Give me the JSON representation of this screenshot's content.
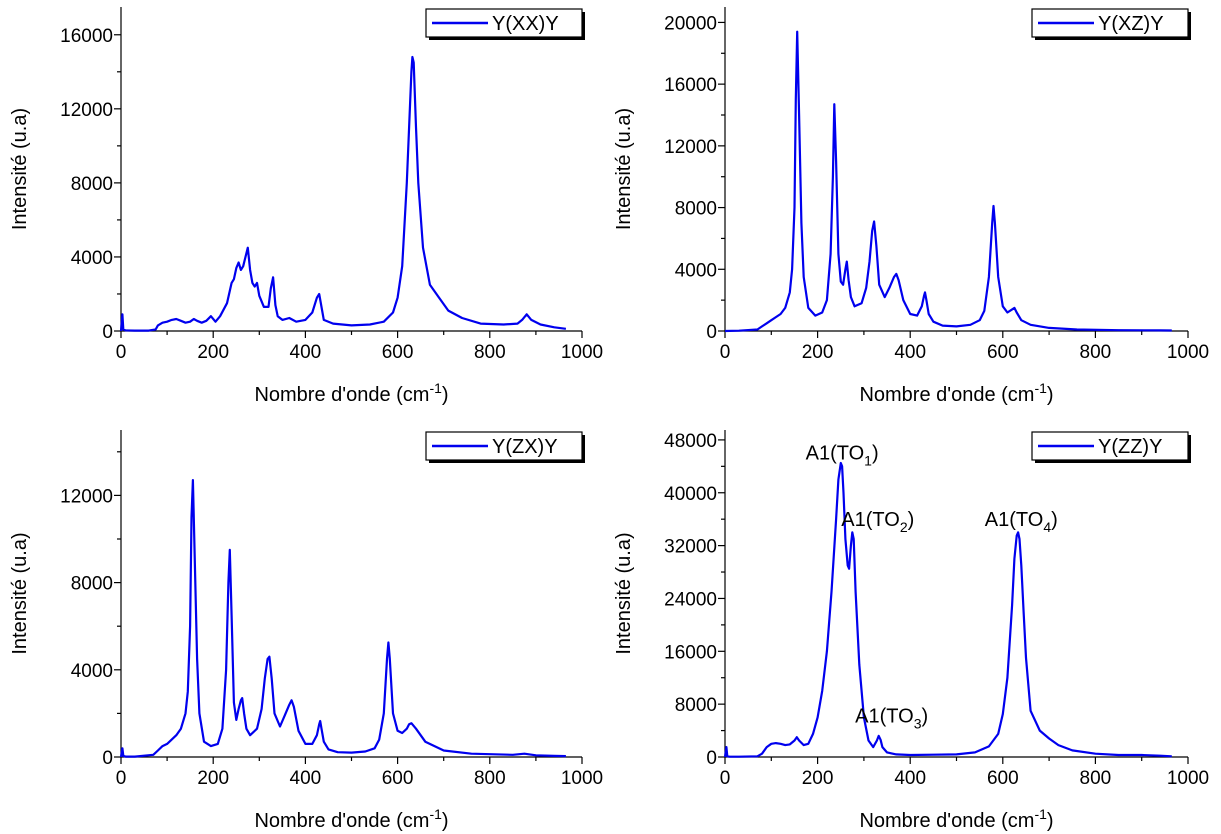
{
  "colors": {
    "series": "#0000ee",
    "axis": "#000000"
  },
  "chart_data": [
    {
      "type": "line",
      "xlabel": "Nombre d'onde (cm",
      "xlabel_sup": "-1",
      "xlabel_close": ")",
      "ylabel": "Intensité (u.a)",
      "xlim": [
        0,
        1000
      ],
      "ylim": [
        0,
        17500
      ],
      "xticks": [
        0,
        200,
        400,
        600,
        800,
        1000
      ],
      "xtick_labels": [
        "0",
        "200",
        "400",
        "600",
        "800",
        "1000"
      ],
      "yticks": [
        0,
        4000,
        8000,
        12000,
        16000
      ],
      "ytick_labels": [
        "0",
        "4000",
        "8000",
        "12000",
        "16000"
      ],
      "grid": false,
      "legend_position": "top-right",
      "series": [
        {
          "name": "Y(XX)Y",
          "x": [
            0,
            3,
            5,
            10,
            30,
            60,
            75,
            80,
            90,
            100,
            110,
            120,
            130,
            140,
            150,
            158,
            165,
            175,
            185,
            195,
            205,
            215,
            230,
            240,
            245,
            250,
            255,
            260,
            265,
            270,
            275,
            280,
            285,
            290,
            295,
            300,
            310,
            320,
            325,
            330,
            335,
            340,
            350,
            365,
            380,
            400,
            415,
            425,
            430,
            440,
            460,
            500,
            540,
            570,
            590,
            600,
            610,
            620,
            625,
            630,
            632,
            635,
            640,
            645,
            655,
            670,
            690,
            710,
            740,
            780,
            830,
            860,
            870,
            880,
            890,
            910,
            940,
            965
          ],
          "y": [
            0,
            900,
            80,
            30,
            20,
            20,
            80,
            300,
            450,
            500,
            600,
            650,
            550,
            450,
            500,
            650,
            550,
            450,
            550,
            800,
            500,
            800,
            1500,
            2600,
            2800,
            3400,
            3700,
            3300,
            3500,
            4000,
            4500,
            3300,
            2600,
            2400,
            2600,
            1900,
            1300,
            1300,
            2300,
            2900,
            1400,
            800,
            600,
            700,
            500,
            600,
            1000,
            1800,
            2000,
            600,
            400,
            300,
            350,
            500,
            1000,
            1800,
            3500,
            8000,
            11000,
            14000,
            14800,
            14500,
            11000,
            8000,
            4500,
            2500,
            1800,
            1100,
            700,
            400,
            350,
            400,
            600,
            900,
            600,
            350,
            200,
            120
          ]
        }
      ]
    },
    {
      "type": "line",
      "xlabel": "Nombre d'onde (cm",
      "xlabel_sup": "-1",
      "xlabel_close": ")",
      "ylabel": "Intensité (u.a)",
      "xlim": [
        0,
        1000
      ],
      "ylim": [
        0,
        21000
      ],
      "xticks": [
        0,
        200,
        400,
        600,
        800,
        1000
      ],
      "xtick_labels": [
        "0",
        "200",
        "400",
        "600",
        "800",
        "1000"
      ],
      "yticks": [
        0,
        4000,
        8000,
        12000,
        16000,
        20000
      ],
      "ytick_labels": [
        "0",
        "4000",
        "8000",
        "12000",
        "16000",
        "20000"
      ],
      "grid": false,
      "legend_position": "top-right",
      "series": [
        {
          "name": "Y(XZ)Y",
          "x": [
            0,
            30,
            70,
            80,
            90,
            100,
            110,
            120,
            130,
            140,
            145,
            150,
            153,
            156,
            160,
            165,
            170,
            180,
            195,
            210,
            220,
            228,
            233,
            236,
            240,
            245,
            250,
            255,
            260,
            263,
            267,
            272,
            280,
            295,
            305,
            312,
            318,
            322,
            327,
            333,
            345,
            355,
            365,
            370,
            375,
            385,
            400,
            415,
            425,
            430,
            432,
            435,
            440,
            450,
            470,
            500,
            530,
            550,
            560,
            570,
            577,
            580,
            583,
            590,
            600,
            610,
            620,
            625,
            630,
            640,
            660,
            700,
            760,
            850,
            940,
            965
          ],
          "y": [
            0,
            20,
            100,
            300,
            500,
            700,
            900,
            1100,
            1500,
            2500,
            4000,
            8000,
            15000,
            19400,
            14000,
            7000,
            3500,
            1500,
            1000,
            1200,
            2000,
            5000,
            10000,
            14700,
            11000,
            5000,
            3200,
            3000,
            4000,
            4500,
            3300,
            2200,
            1600,
            1800,
            2800,
            4500,
            6500,
            7100,
            5500,
            3000,
            2200,
            2800,
            3500,
            3700,
            3300,
            2000,
            1100,
            1000,
            1600,
            2300,
            2500,
            2000,
            1100,
            600,
            350,
            300,
            400,
            700,
            1300,
            3500,
            7000,
            8100,
            7000,
            3500,
            1600,
            1200,
            1400,
            1500,
            1200,
            700,
            400,
            200,
            100,
            50,
            40,
            30
          ]
        }
      ]
    },
    {
      "type": "line",
      "xlabel": "Nombre d'onde (cm",
      "xlabel_sup": "-1",
      "xlabel_close": ")",
      "ylabel": "Intensité (u.a)",
      "xlim": [
        0,
        1000
      ],
      "ylim": [
        0,
        15000
      ],
      "xticks": [
        0,
        200,
        400,
        600,
        800,
        1000
      ],
      "xtick_labels": [
        "0",
        "200",
        "400",
        "600",
        "800",
        "1000"
      ],
      "yticks": [
        0,
        4000,
        8000,
        12000
      ],
      "ytick_labels": [
        "0",
        "4000",
        "8000",
        "12000"
      ],
      "grid": false,
      "legend_position": "top-right",
      "series": [
        {
          "name": "Y(ZX)Y",
          "x": [
            0,
            3,
            5,
            10,
            30,
            70,
            80,
            90,
            100,
            110,
            120,
            130,
            140,
            145,
            150,
            153,
            156,
            160,
            165,
            170,
            180,
            195,
            210,
            220,
            228,
            233,
            236,
            240,
            245,
            250,
            255,
            260,
            263,
            267,
            272,
            280,
            295,
            305,
            312,
            318,
            322,
            327,
            333,
            345,
            355,
            365,
            370,
            375,
            385,
            400,
            415,
            425,
            430,
            432,
            435,
            440,
            450,
            470,
            500,
            530,
            550,
            560,
            570,
            577,
            580,
            583,
            590,
            600,
            610,
            620,
            625,
            630,
            640,
            660,
            700,
            760,
            850,
            875,
            900,
            940,
            965
          ],
          "y": [
            0,
            400,
            50,
            20,
            20,
            100,
            300,
            500,
            600,
            800,
            1000,
            1300,
            2000,
            3000,
            6000,
            11000,
            12700,
            9000,
            4500,
            2000,
            700,
            500,
            600,
            1300,
            4000,
            8000,
            9500,
            6500,
            2500,
            1700,
            2200,
            2600,
            2700,
            2000,
            1300,
            1000,
            1300,
            2200,
            3600,
            4500,
            4600,
            3600,
            2000,
            1400,
            1900,
            2400,
            2600,
            2300,
            1200,
            600,
            600,
            1000,
            1500,
            1650,
            1300,
            700,
            350,
            220,
            200,
            250,
            400,
            800,
            2000,
            4500,
            5250,
            4500,
            2000,
            1200,
            1100,
            1300,
            1500,
            1550,
            1300,
            700,
            300,
            150,
            100,
            150,
            80,
            50,
            40
          ]
        }
      ]
    },
    {
      "type": "line",
      "xlabel": "Nombre d'onde (cm",
      "xlabel_sup": "-1",
      "xlabel_close": ")",
      "ylabel": "Intensité (u.a)",
      "xlim": [
        0,
        1000
      ],
      "ylim": [
        0,
        49500
      ],
      "xticks": [
        0,
        200,
        400,
        600,
        800,
        1000
      ],
      "xtick_labels": [
        "0",
        "200",
        "400",
        "600",
        "800",
        "1000"
      ],
      "yticks": [
        0,
        8000,
        16000,
        24000,
        32000,
        40000,
        48000
      ],
      "ytick_labels": [
        "0",
        "8000",
        "16000",
        "24000",
        "32000",
        "40000",
        "48000"
      ],
      "grid": false,
      "legend_position": "top-right",
      "annotations": [
        {
          "text": "A1(TO",
          "sub": "1",
          "close": ")",
          "x": 253,
          "y": 45000
        },
        {
          "text": "A1(TO",
          "sub": "2",
          "close": ")",
          "x": 330,
          "y": 35000
        },
        {
          "text": "A1(TO",
          "sub": "3",
          "close": ")",
          "x": 360,
          "y": 5200
        },
        {
          "text": "A1(TO",
          "sub": "4",
          "close": ")",
          "x": 640,
          "y": 35000
        }
      ],
      "series": [
        {
          "name": "Y(ZZ)Y",
          "x": [
            0,
            3,
            5,
            10,
            30,
            70,
            80,
            90,
            100,
            110,
            120,
            130,
            140,
            150,
            155,
            160,
            170,
            180,
            190,
            200,
            210,
            220,
            230,
            240,
            245,
            250,
            253,
            256,
            260,
            265,
            268,
            272,
            275,
            278,
            282,
            290,
            300,
            310,
            320,
            328,
            332,
            336,
            340,
            350,
            370,
            400,
            450,
            500,
            540,
            570,
            590,
            600,
            610,
            620,
            625,
            630,
            633,
            636,
            640,
            645,
            650,
            660,
            680,
            700,
            720,
            750,
            800,
            850,
            900,
            940,
            965
          ],
          "y": [
            0,
            1500,
            100,
            50,
            50,
            100,
            500,
            1500,
            2000,
            2100,
            2000,
            1800,
            1900,
            2500,
            3000,
            2500,
            1800,
            2000,
            3500,
            6000,
            10000,
            16000,
            25000,
            36000,
            42000,
            44500,
            44000,
            40000,
            33000,
            29000,
            28500,
            32000,
            34000,
            33000,
            25000,
            14000,
            6000,
            2500,
            1500,
            2500,
            3200,
            2600,
            1500,
            700,
            400,
            300,
            350,
            400,
            700,
            1600,
            3500,
            6500,
            12000,
            23000,
            30000,
            33500,
            34000,
            33000,
            29000,
            22000,
            15000,
            7000,
            4000,
            2800,
            1800,
            1000,
            500,
            300,
            300,
            200,
            100
          ]
        }
      ]
    }
  ]
}
